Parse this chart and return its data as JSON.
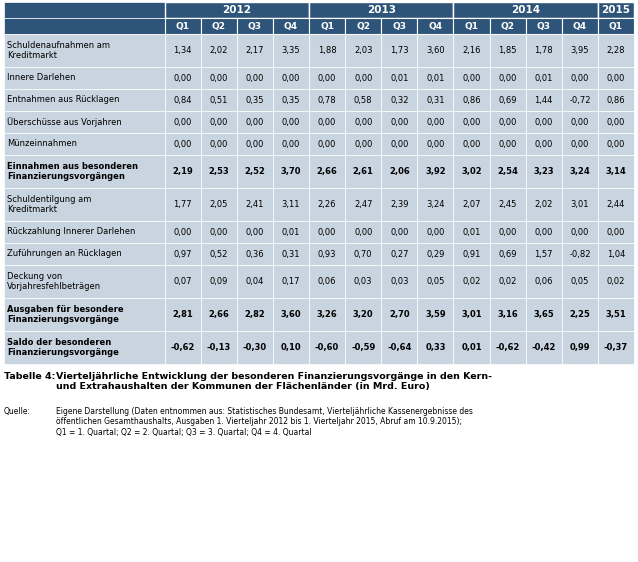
{
  "title_label": "Tabelle 4:",
  "title_text": "Vierteljährliche Entwicklung der besonderen Finanzierungsvorgänge in den Kern-\nund Extrahaushalten der Kommunen der Flächenländer (in Mrd. Euro)",
  "source_label": "Quelle:",
  "source_text": "Eigene Darstellung (Daten entnommen aus: Statistisches Bundesamt, Vierteljährliche Kassenergebnisse des\nöffentlichen Gesamthaushalts, Ausgaben 1. Vierteljahr 2012 bis 1. Vierteljahr 2015, Abruf am 10.9.2015);\nQ1 = 1. Quartal; Q2 = 2. Quartal; Q3 = 3. Quartal; Q4 = 4. Quartal",
  "year_headers": [
    "2012",
    "2013",
    "2014",
    "2015"
  ],
  "year_spans": [
    4,
    4,
    4,
    1
  ],
  "quarter_headers": [
    "Q1",
    "Q2",
    "Q3",
    "Q4",
    "Q1",
    "Q2",
    "Q3",
    "Q4",
    "Q1",
    "Q2",
    "Q3",
    "Q4",
    "Q1"
  ],
  "row_labels": [
    "Schuldenaufnahmen am\nKreditmarkt",
    "Innere Darlehen",
    "Entnahmen aus Rücklagen",
    "Überschüsse aus Vorjahren",
    "Münzeinnahmen",
    "Einnahmen aus besonderen\nFinanzierungsvorgängen",
    "Schuldentilgung am\nKreditmarkt",
    "Rückzahlung Innerer Darlehen",
    "Zuführungen an Rücklagen",
    "Deckung von\nVorjahresfehlbeträgen",
    "Ausgaben für besondere\nFinanzierungsvorgänge",
    "Saldo der besonderen\nFinanzierungsvorgänge"
  ],
  "data": [
    [
      "1,34",
      "2,02",
      "2,17",
      "3,35",
      "1,88",
      "2,03",
      "1,73",
      "3,60",
      "2,16",
      "1,85",
      "1,78",
      "3,95",
      "2,28"
    ],
    [
      "0,00",
      "0,00",
      "0,00",
      "0,00",
      "0,00",
      "0,00",
      "0,01",
      "0,01",
      "0,00",
      "0,00",
      "0,01",
      "0,00",
      "0,00"
    ],
    [
      "0,84",
      "0,51",
      "0,35",
      "0,35",
      "0,78",
      "0,58",
      "0,32",
      "0,31",
      "0,86",
      "0,69",
      "1,44",
      "-0,72",
      "0,86"
    ],
    [
      "0,00",
      "0,00",
      "0,00",
      "0,00",
      "0,00",
      "0,00",
      "0,00",
      "0,00",
      "0,00",
      "0,00",
      "0,00",
      "0,00",
      "0,00"
    ],
    [
      "0,00",
      "0,00",
      "0,00",
      "0,00",
      "0,00",
      "0,00",
      "0,00",
      "0,00",
      "0,00",
      "0,00",
      "0,00",
      "0,00",
      "0,00"
    ],
    [
      "2,19",
      "2,53",
      "2,52",
      "3,70",
      "2,66",
      "2,61",
      "2,06",
      "3,92",
      "3,02",
      "2,54",
      "3,23",
      "3,24",
      "3,14"
    ],
    [
      "1,77",
      "2,05",
      "2,41",
      "3,11",
      "2,26",
      "2,47",
      "2,39",
      "3,24",
      "2,07",
      "2,45",
      "2,02",
      "3,01",
      "2,44"
    ],
    [
      "0,00",
      "0,00",
      "0,00",
      "0,01",
      "0,00",
      "0,00",
      "0,00",
      "0,00",
      "0,01",
      "0,00",
      "0,00",
      "0,00",
      "0,00"
    ],
    [
      "0,97",
      "0,52",
      "0,36",
      "0,31",
      "0,93",
      "0,70",
      "0,27",
      "0,29",
      "0,91",
      "0,69",
      "1,57",
      "-0,82",
      "1,04"
    ],
    [
      "0,07",
      "0,09",
      "0,04",
      "0,17",
      "0,06",
      "0,03",
      "0,03",
      "0,05",
      "0,02",
      "0,02",
      "0,06",
      "0,05",
      "0,02"
    ],
    [
      "2,81",
      "2,66",
      "2,82",
      "3,60",
      "3,26",
      "3,20",
      "2,70",
      "3,59",
      "3,01",
      "3,16",
      "3,65",
      "2,25",
      "3,51"
    ],
    [
      "-0,62",
      "-0,13",
      "-0,30",
      "0,10",
      "-0,60",
      "-0,59",
      "-0,64",
      "0,33",
      "0,01",
      "-0,62",
      "-0,42",
      "0,99",
      "-0,37"
    ]
  ],
  "header_bg": "#2E5579",
  "header_text_color": "#FFFFFF",
  "row_bg": "#C8D4DF",
  "bold_rows": [
    5,
    10,
    11
  ],
  "text_color": "#000000",
  "two_line_rows": [
    0,
    5,
    6,
    9,
    10,
    11
  ]
}
